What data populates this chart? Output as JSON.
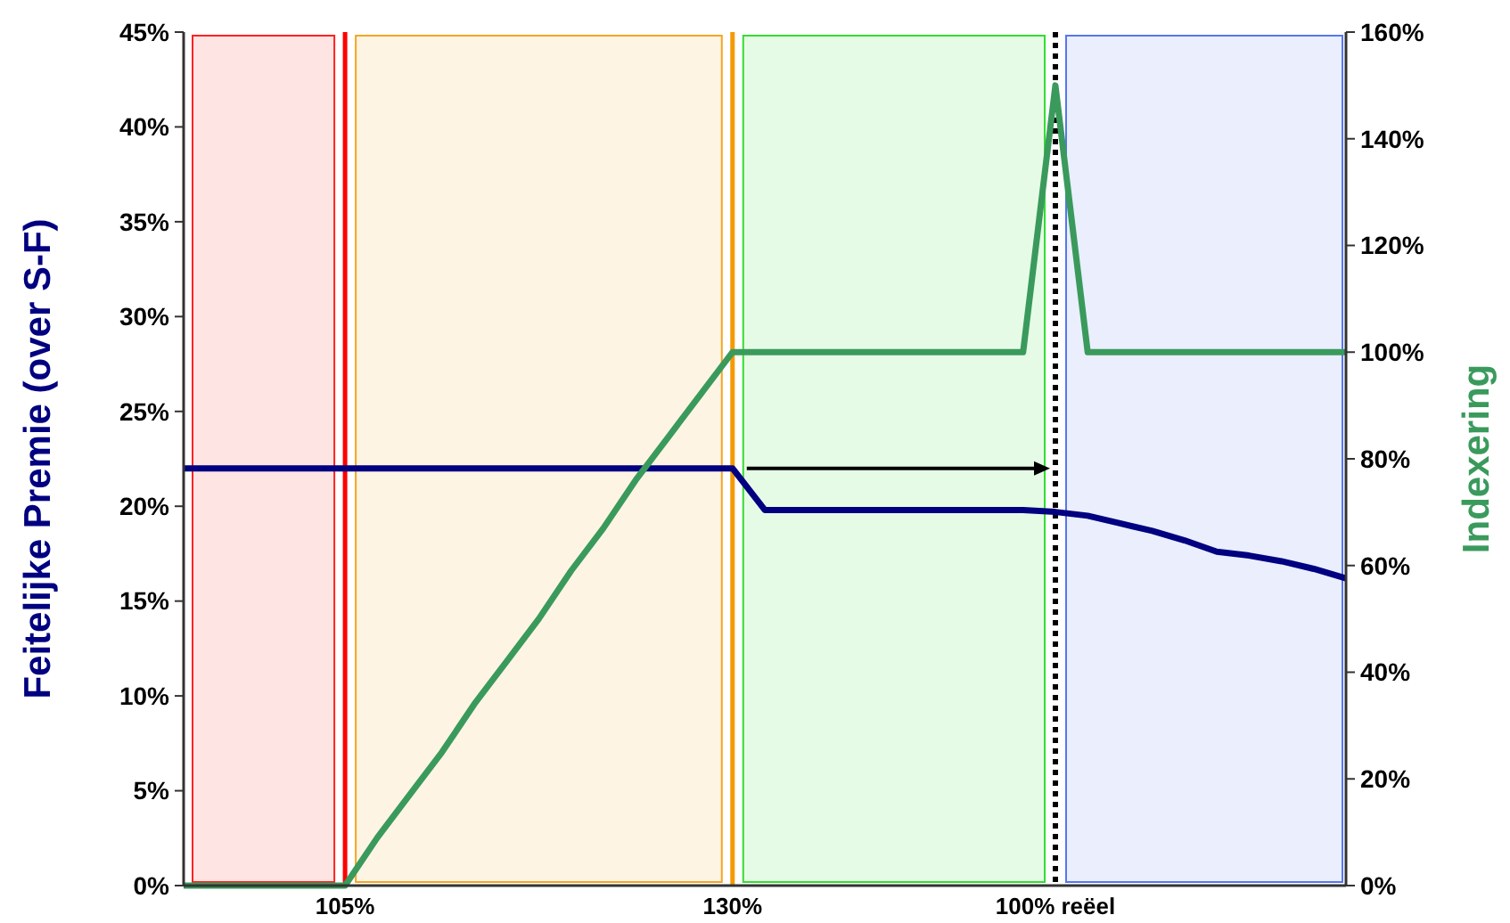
{
  "chart_data": {
    "type": "line",
    "ylabel": "Feitelijke Premie (over S-F)",
    "y2label": "Indexering",
    "categories": [
      null,
      null,
      null,
      null,
      null,
      "105%",
      null,
      null,
      null,
      null,
      null,
      null,
      null,
      null,
      null,
      null,
      null,
      "130%",
      null,
      null,
      null,
      null,
      null,
      null,
      null,
      null,
      null,
      "100% reëel",
      null,
      null,
      null,
      null,
      null,
      null,
      null,
      null,
      null
    ],
    "ylim": [
      0,
      0.45
    ],
    "yticks": [
      {
        "value": 0,
        "label": "0%"
      },
      {
        "value": 0.05,
        "label": "5%"
      },
      {
        "value": 0.1,
        "label": "10%"
      },
      {
        "value": 0.15,
        "label": "15%"
      },
      {
        "value": 0.2,
        "label": "20%"
      },
      {
        "value": 0.25,
        "label": "25%"
      },
      {
        "value": 0.3,
        "label": "30%"
      },
      {
        "value": 0.35,
        "label": "35%"
      },
      {
        "value": 0.4,
        "label": "40%"
      },
      {
        "value": 0.45,
        "label": "45%"
      }
    ],
    "y2lim": [
      0,
      1.6
    ],
    "y2ticks": [
      {
        "value": 0,
        "label": "0%"
      },
      {
        "value": 0.2,
        "label": "20%"
      },
      {
        "value": 0.4,
        "label": "40%"
      },
      {
        "value": 0.6,
        "label": "60%"
      },
      {
        "value": 0.8,
        "label": "80%"
      },
      {
        "value": 1,
        "label": "100%"
      },
      {
        "value": 1.2,
        "label": "120%"
      },
      {
        "value": 1.4,
        "label": "140%"
      },
      {
        "value": 1.6,
        "label": "160%"
      }
    ],
    "grid": false,
    "legend": false,
    "marker": "none",
    "line_style": "solid",
    "series": [
      {
        "color": "#000080",
        "values": [
          0.22,
          0.22,
          0.22,
          0.22,
          0.22,
          0.22,
          0.22,
          0.22,
          0.22,
          0.22,
          0.22,
          0.22,
          0.22,
          0.22,
          0.22,
          0.22,
          0.22,
          0.22,
          0.198,
          0.198,
          0.198,
          0.198,
          0.198,
          0.198,
          0.198,
          0.198,
          0.198,
          0.197,
          0.195,
          0.191,
          0.187,
          0.182,
          0.176,
          0.174,
          0.171,
          0.167,
          0.162
        ]
      },
      {
        "color": "#3a9a5c",
        "axis": "y2",
        "values": [
          0,
          0,
          0,
          0,
          0,
          0,
          0.09,
          0.17,
          0.25,
          0.34,
          0.42,
          0.5,
          0.59,
          0.67,
          0.76,
          0.84,
          0.92,
          1,
          1,
          1,
          1,
          1,
          1,
          1,
          1,
          1,
          1,
          1.5,
          1,
          1,
          1,
          1,
          1,
          1,
          1,
          1,
          1
        ]
      }
    ],
    "bands": [
      {
        "axis": "x",
        "from": "105%",
        "to": "130%",
        "color": "#f5a623"
      },
      {
        "axis": "x",
        "from": "130%",
        "to": "100% reëel",
        "color": "#33dd33"
      }
    ],
    "ref_lines": [
      {
        "axis": "x",
        "value": "105%",
        "color": "#ff0000",
        "line_style": "solid"
      },
      {
        "axis": "x",
        "value": "130%",
        "color": "#f59a00",
        "line_style": "solid"
      },
      {
        "axis": "x",
        "value": "100% reëel",
        "color": "#000000",
        "line_style": "dotted"
      }
    ]
  }
}
